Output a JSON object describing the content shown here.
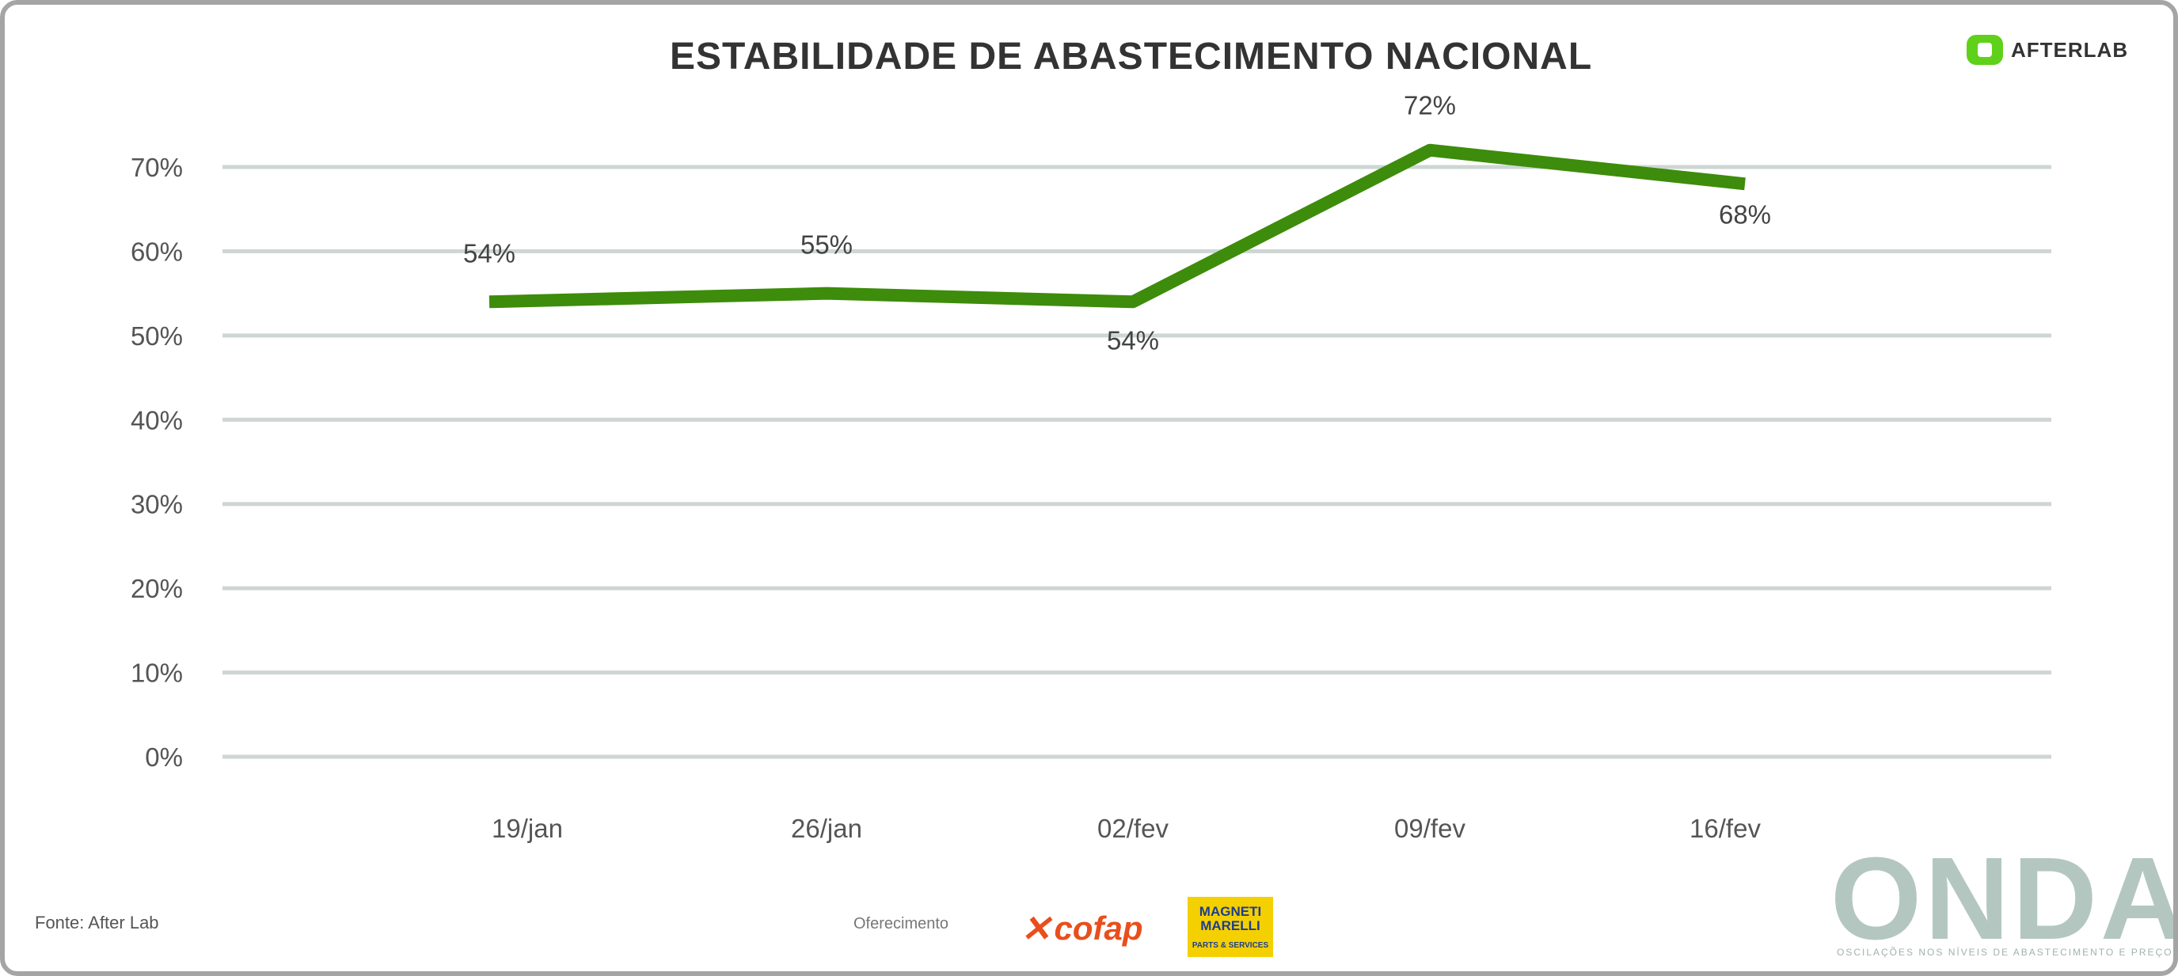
{
  "title": "ESTABILIDADE DE ABASTECIMENTO NACIONAL",
  "brand_logo": {
    "text": "AFTERLAB",
    "icon": "afterlab-logo-icon",
    "color": "#5fd11b"
  },
  "source_text": "Fonte: After Lab",
  "sponsor_label": "Oferecimento",
  "sponsors": {
    "cofap": {
      "text": "cofap",
      "color": "#e94e1b"
    },
    "magneti": {
      "line1": "MAGNETI",
      "line2": "MARELLI",
      "line3": "PARTS & SERVICES",
      "color": "#f5d000"
    }
  },
  "onda": {
    "title": "ONDA",
    "subtitle": "OSCILAÇÕES NOS NÍVEIS DE ABASTECIMENTO E PREÇOS",
    "color": "#b3c7c0"
  },
  "chart_data": {
    "type": "line",
    "categories": [
      "19/jan",
      "26/jan",
      "02/fev",
      "09/fev",
      "16/fev"
    ],
    "series": [
      {
        "values": [
          54,
          55,
          54,
          72,
          68
        ],
        "color": "#3d8c0b"
      }
    ],
    "data_labels": [
      "54%",
      "55%",
      "54%",
      "72%",
      "68%"
    ],
    "y_ticks": [
      "0%",
      "10%",
      "20%",
      "30%",
      "40%",
      "50%",
      "60%",
      "70%"
    ],
    "ylim": [
      0,
      70
    ],
    "grid": true,
    "gridline_color": "#cdd6d3"
  }
}
